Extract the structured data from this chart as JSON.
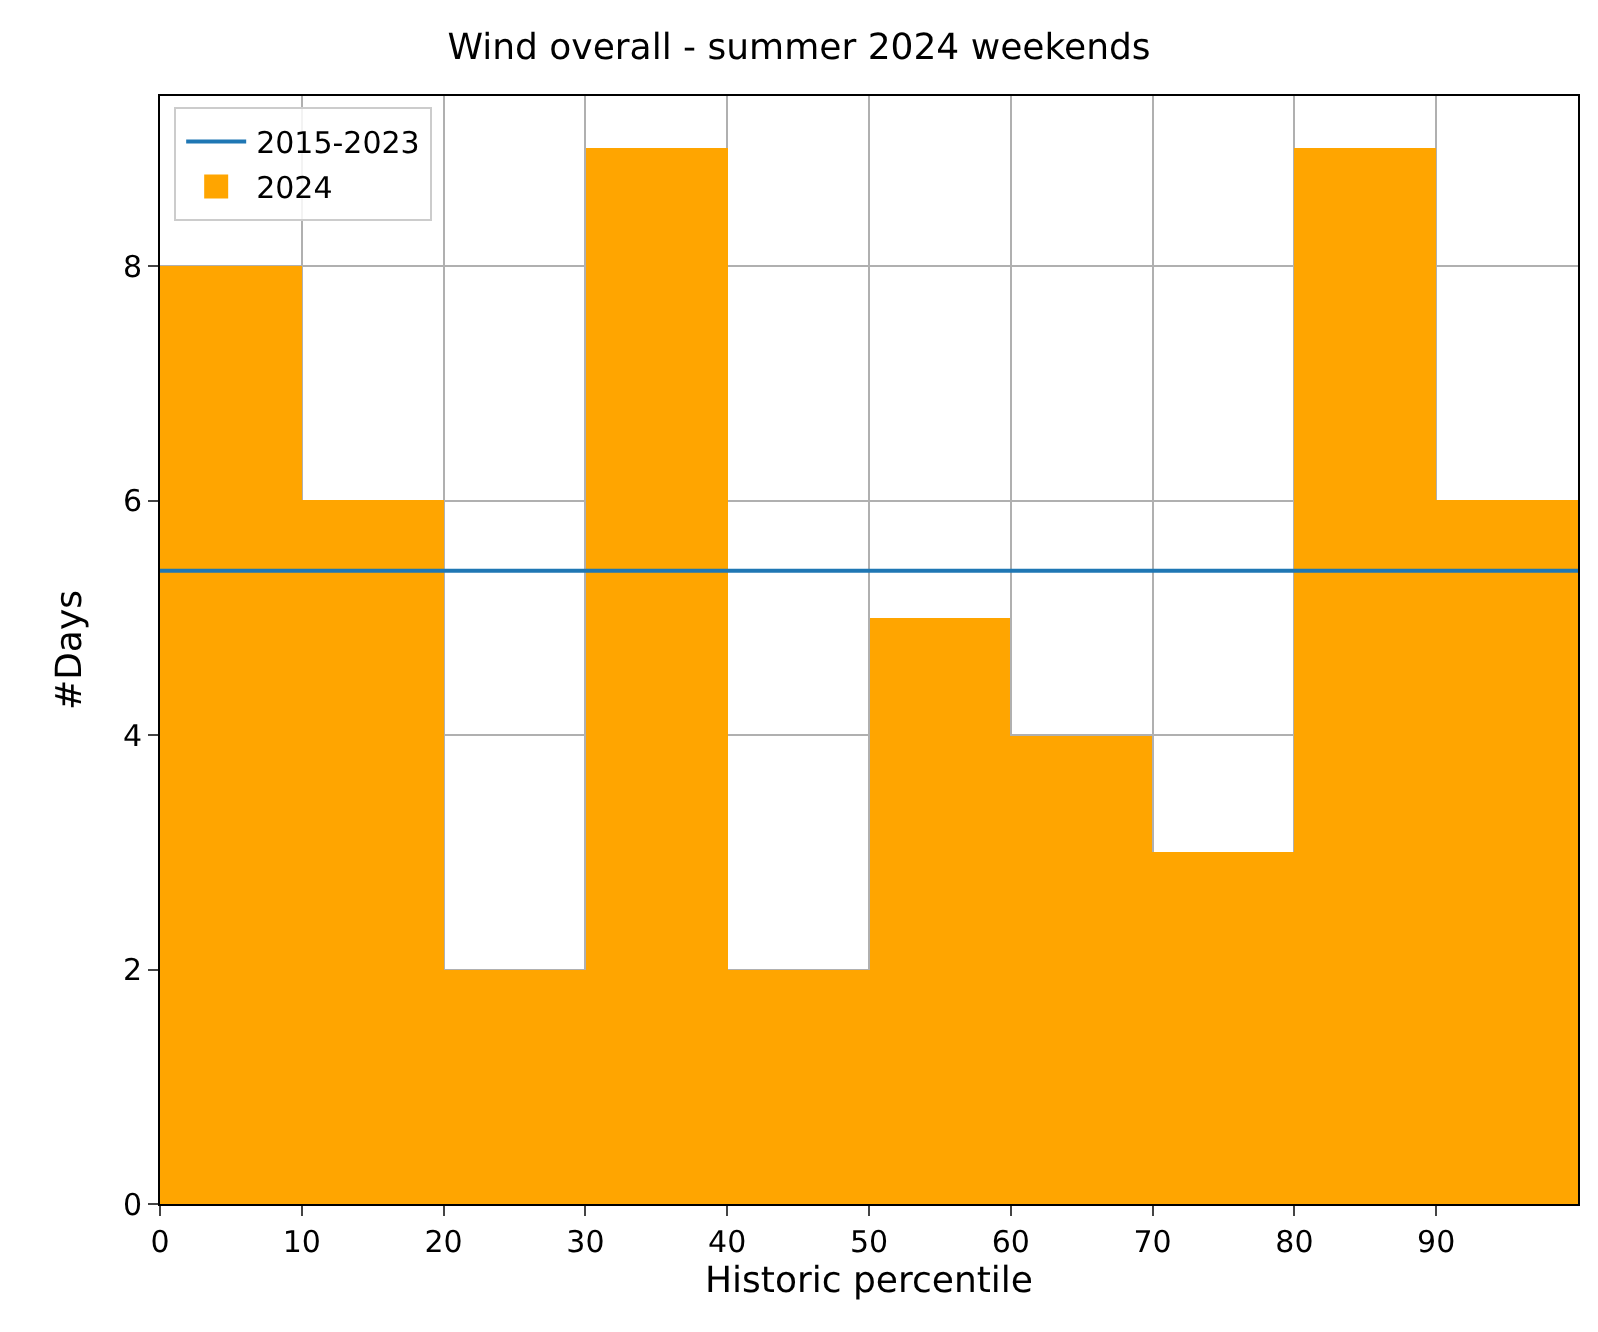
{
  "chart_data": {
    "type": "histogram",
    "title": "Wind overall - summer 2024 weekends",
    "xlabel": "Historic percentile",
    "ylabel": "#Days",
    "bins": [
      0,
      10,
      20,
      30,
      40,
      50,
      60,
      70,
      80,
      90,
      100
    ],
    "series": [
      {
        "name": "2015-2023",
        "type": "line",
        "color": "#1f77b4",
        "x": [
          0,
          100
        ],
        "values": [
          5.4,
          5.4
        ]
      },
      {
        "name": "2024",
        "color": "#ffa500",
        "values": [
          8,
          6,
          2,
          9,
          2,
          5,
          4,
          3,
          9,
          6
        ]
      }
    ],
    "line_style": "solid",
    "xlim": [
      0,
      100
    ],
    "xticks": [
      0,
      10,
      20,
      30,
      40,
      50,
      60,
      70,
      80,
      90
    ],
    "ylim": [
      0,
      9.45
    ],
    "yticks": [
      0,
      2,
      4,
      6,
      8
    ],
    "grid": true,
    "legend": "top left"
  }
}
